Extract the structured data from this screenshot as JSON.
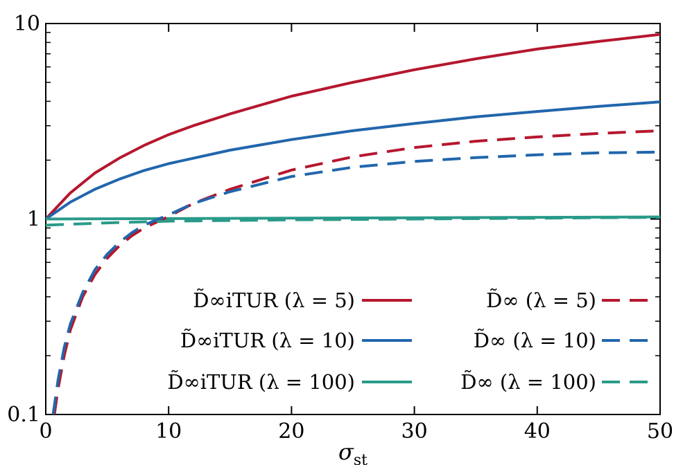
{
  "chart_data": {
    "type": "line",
    "title": "",
    "xlabel": "σst",
    "ylabel": "",
    "xlim": [
      0,
      50
    ],
    "ylim": [
      0.1,
      10
    ],
    "yscale": "log",
    "grid": false,
    "legend_position": "bottom-right",
    "xticks": [
      "0",
      "10",
      "20",
      "30",
      "40",
      "50"
    ],
    "yticks": [
      "0.1",
      "1",
      "10"
    ],
    "series": [
      {
        "name": "D̃∞iTUR (λ = 5)",
        "color": "#b5172e",
        "dash": "solid",
        "x": [
          0,
          2,
          4,
          6,
          8,
          10,
          12,
          15,
          20,
          25,
          30,
          35,
          40,
          45,
          50
        ],
        "y": [
          1.0,
          1.36,
          1.72,
          2.05,
          2.38,
          2.7,
          3.0,
          3.45,
          4.25,
          5.0,
          5.8,
          6.6,
          7.4,
          8.1,
          8.8
        ]
      },
      {
        "name": "D̃∞iTUR (λ = 10)",
        "color": "#2166ac",
        "dash": "solid",
        "x": [
          0,
          2,
          4,
          6,
          8,
          10,
          15,
          20,
          25,
          30,
          35,
          40,
          45,
          50
        ],
        "y": [
          1.0,
          1.22,
          1.42,
          1.6,
          1.77,
          1.92,
          2.25,
          2.55,
          2.83,
          3.08,
          3.33,
          3.55,
          3.77,
          3.97
        ]
      },
      {
        "name": "D̃∞iTUR (λ = 100)",
        "color": "#2a9a8a",
        "dash": "solid",
        "x": [
          0,
          10,
          20,
          30,
          40,
          50
        ],
        "y": [
          1.0,
          1.005,
          1.01,
          1.015,
          1.02,
          1.025
        ]
      },
      {
        "name": "D̃∞ (λ = 5)",
        "color": "#b5172e",
        "dash": "dashed",
        "x": [
          0.7,
          1,
          1.5,
          2,
          3,
          4,
          5,
          6,
          7,
          8,
          10,
          12,
          15,
          20,
          25,
          30,
          35,
          40,
          45,
          50
        ],
        "y": [
          0.1,
          0.135,
          0.2,
          0.27,
          0.4,
          0.52,
          0.63,
          0.73,
          0.82,
          0.9,
          1.03,
          1.2,
          1.42,
          1.78,
          2.08,
          2.32,
          2.5,
          2.63,
          2.74,
          2.83
        ]
      },
      {
        "name": "D̃∞ (λ = 10)",
        "color": "#2166ac",
        "dash": "dashed",
        "x": [
          0.6,
          1,
          1.5,
          2,
          3,
          4,
          5,
          6,
          7,
          8,
          10,
          12,
          15,
          20,
          25,
          30,
          35,
          40,
          45,
          50
        ],
        "y": [
          0.1,
          0.15,
          0.22,
          0.29,
          0.42,
          0.55,
          0.66,
          0.76,
          0.85,
          0.93,
          1.05,
          1.2,
          1.38,
          1.65,
          1.84,
          1.97,
          2.06,
          2.13,
          2.18,
          2.2
        ]
      },
      {
        "name": "D̃∞ (λ = 100)",
        "color": "#2a9a8a",
        "dash": "dashed",
        "x": [
          0,
          5,
          10,
          20,
          30,
          40,
          50
        ],
        "y": [
          0.93,
          0.955,
          0.975,
          0.99,
          1.0,
          1.01,
          1.02
        ]
      }
    ]
  }
}
